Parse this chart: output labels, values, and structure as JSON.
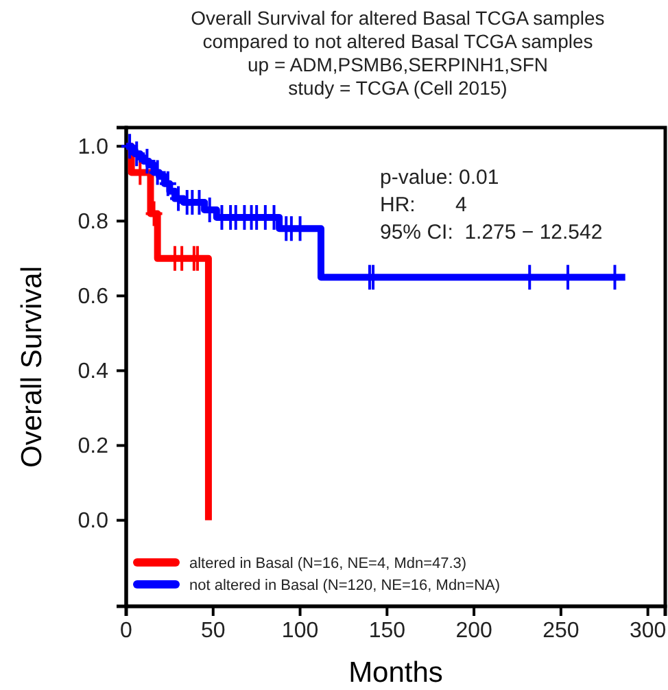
{
  "chart_data": {
    "type": "step",
    "title": "Overall Survival for altered Basal TCGA samples\ncompared to not altered Basal TCGA samples\nup = ADM,PSMB6,SERPINH1,SFN\nstudy = TCGA (Cell 2015)",
    "xlabel": "Months",
    "ylabel": "Overall Survival",
    "annotations": [
      "p-value: 0.01",
      "HR:       4",
      "95% CI:  1.275 − 12.542"
    ],
    "xlim": [
      0,
      310
    ],
    "xticks": [
      0,
      50,
      100,
      150,
      200,
      250,
      300
    ],
    "ylim": [
      -0.23,
      1.05
    ],
    "yticks": [
      {
        "value": 0,
        "label": "0.0"
      },
      0.2,
      0.4,
      0.6,
      0.8,
      {
        "value": 1,
        "label": "1.0"
      }
    ],
    "legend": "bottom left",
    "grid": false,
    "series": [
      {
        "name": "altered in Basal (N=16, NE=4, Mdn=47.3)",
        "color": "#ff0000",
        "x": [
          0,
          3,
          14,
          18,
          47.3
        ],
        "values": [
          1,
          0.93,
          0.82,
          0.7,
          0
        ]
      },
      {
        "name": "not altered in Basal (N=120, NE=16, Mdn=NA)",
        "color": "#0000ff",
        "x": [
          0,
          3,
          5,
          8,
          10,
          13,
          16,
          19,
          22,
          25,
          28,
          33,
          45,
          52,
          88,
          112,
          287
        ],
        "values": [
          1,
          0.99,
          0.98,
          0.97,
          0.96,
          0.95,
          0.93,
          0.92,
          0.9,
          0.88,
          0.86,
          0.85,
          0.83,
          0.81,
          0.78,
          0.65,
          0.65
        ]
      },
      {
        "type": "scatter",
        "marker": "cross",
        "color": "#ff0000",
        "x": [
          8,
          16,
          28,
          32,
          39,
          41
        ],
        "values": [
          0.93,
          0.82,
          0.7,
          0.7,
          0.7,
          0.7
        ]
      },
      {
        "type": "scatter",
        "marker": "cross",
        "color": "#0000ff",
        "x": [
          2,
          6,
          12,
          18,
          24,
          30,
          35,
          38,
          42,
          48,
          55,
          60,
          63,
          68,
          72,
          75,
          80,
          85,
          92,
          95,
          100,
          140,
          142,
          232,
          254,
          281
        ],
        "values": [
          1,
          0.98,
          0.96,
          0.93,
          0.9,
          0.86,
          0.85,
          0.85,
          0.85,
          0.83,
          0.81,
          0.81,
          0.81,
          0.81,
          0.81,
          0.81,
          0.81,
          0.81,
          0.78,
          0.78,
          0.78,
          0.65,
          0.65,
          0.65,
          0.65,
          0.65
        ]
      }
    ]
  }
}
